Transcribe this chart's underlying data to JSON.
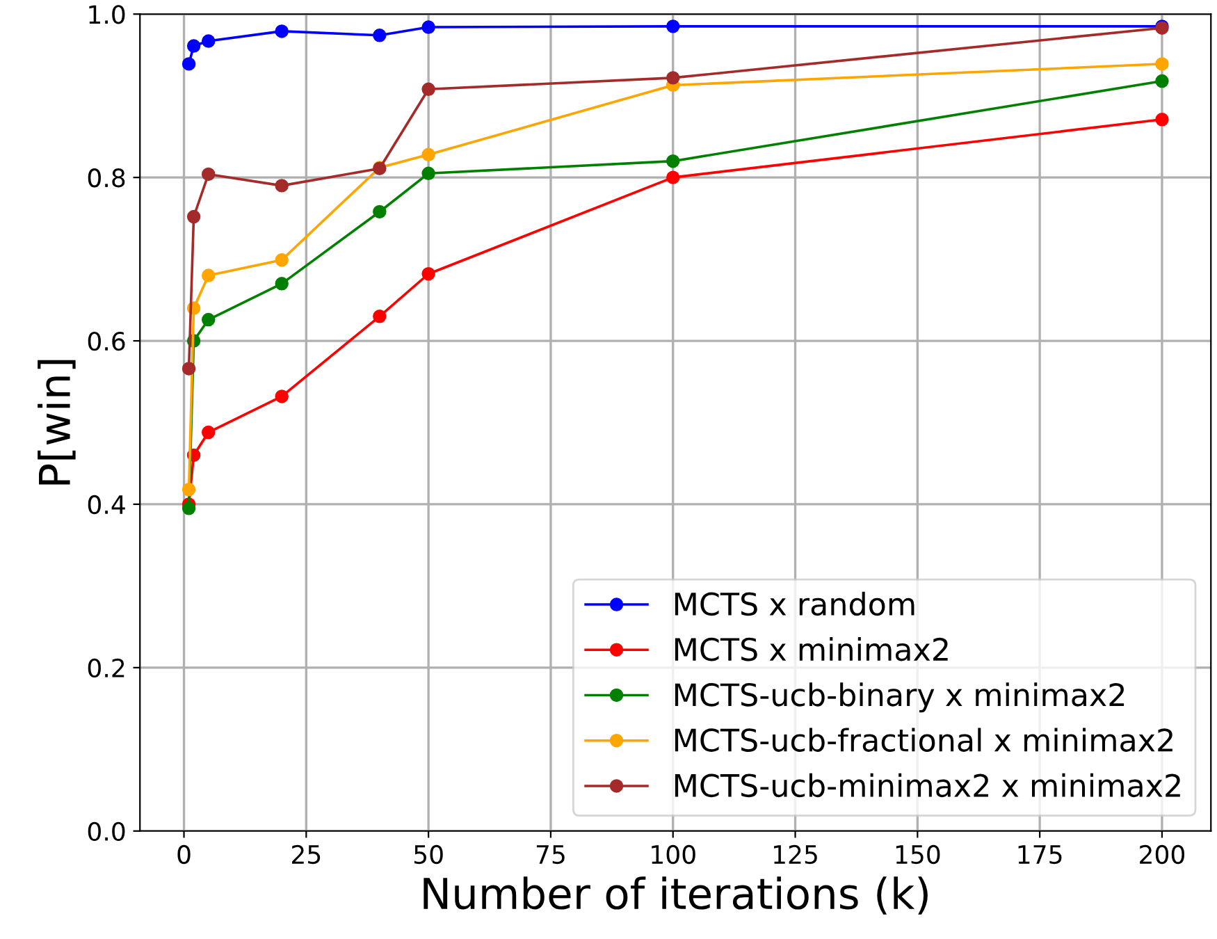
{
  "chart_data": {
    "type": "line",
    "xlabel": "Number of iterations (k)",
    "ylabel": "P[win]",
    "x": [
      1,
      2,
      5,
      20,
      40,
      50,
      100,
      200
    ],
    "series": [
      {
        "name": "MCTS x random",
        "color": "#0000ff",
        "values": [
          0.939,
          0.961,
          0.967,
          0.979,
          0.974,
          0.984,
          0.985,
          0.985
        ]
      },
      {
        "name": "MCTS x minimax2",
        "color": "#ff0000",
        "values": [
          0.4,
          0.46,
          0.488,
          0.532,
          0.63,
          0.682,
          0.8,
          0.871
        ]
      },
      {
        "name": "MCTS-ucb-binary x minimax2",
        "color": "#008000",
        "values": [
          0.395,
          0.6,
          0.626,
          0.67,
          0.758,
          0.805,
          0.82,
          0.918
        ]
      },
      {
        "name": "MCTS-ucb-fractional x minimax2",
        "color": "#ffa500",
        "values": [
          0.418,
          0.64,
          0.68,
          0.699,
          0.812,
          0.828,
          0.913,
          0.939
        ]
      },
      {
        "name": "MCTS-ucb-minimax2 x minimax2",
        "color": "#a52a2a",
        "values": [
          0.566,
          0.752,
          0.804,
          0.79,
          0.811,
          0.908,
          0.922,
          0.983
        ]
      }
    ],
    "xlim": [
      -9,
      210
    ],
    "ylim": [
      0.0,
      1.0
    ],
    "xticks": [
      0,
      25,
      50,
      75,
      100,
      125,
      150,
      175,
      200
    ],
    "yticks": [
      {
        "value": 0.0,
        "label": "0.0"
      },
      {
        "value": 0.2,
        "label": "0.2"
      },
      {
        "value": 0.4,
        "label": "0.4"
      },
      {
        "value": 0.6,
        "label": "0.6"
      },
      {
        "value": 0.8,
        "label": "0.8"
      },
      {
        "value": 1.0,
        "label": "1.0"
      }
    ],
    "grid": true,
    "legend": "bottom right",
    "marker": "circle",
    "line_style": "solid"
  }
}
